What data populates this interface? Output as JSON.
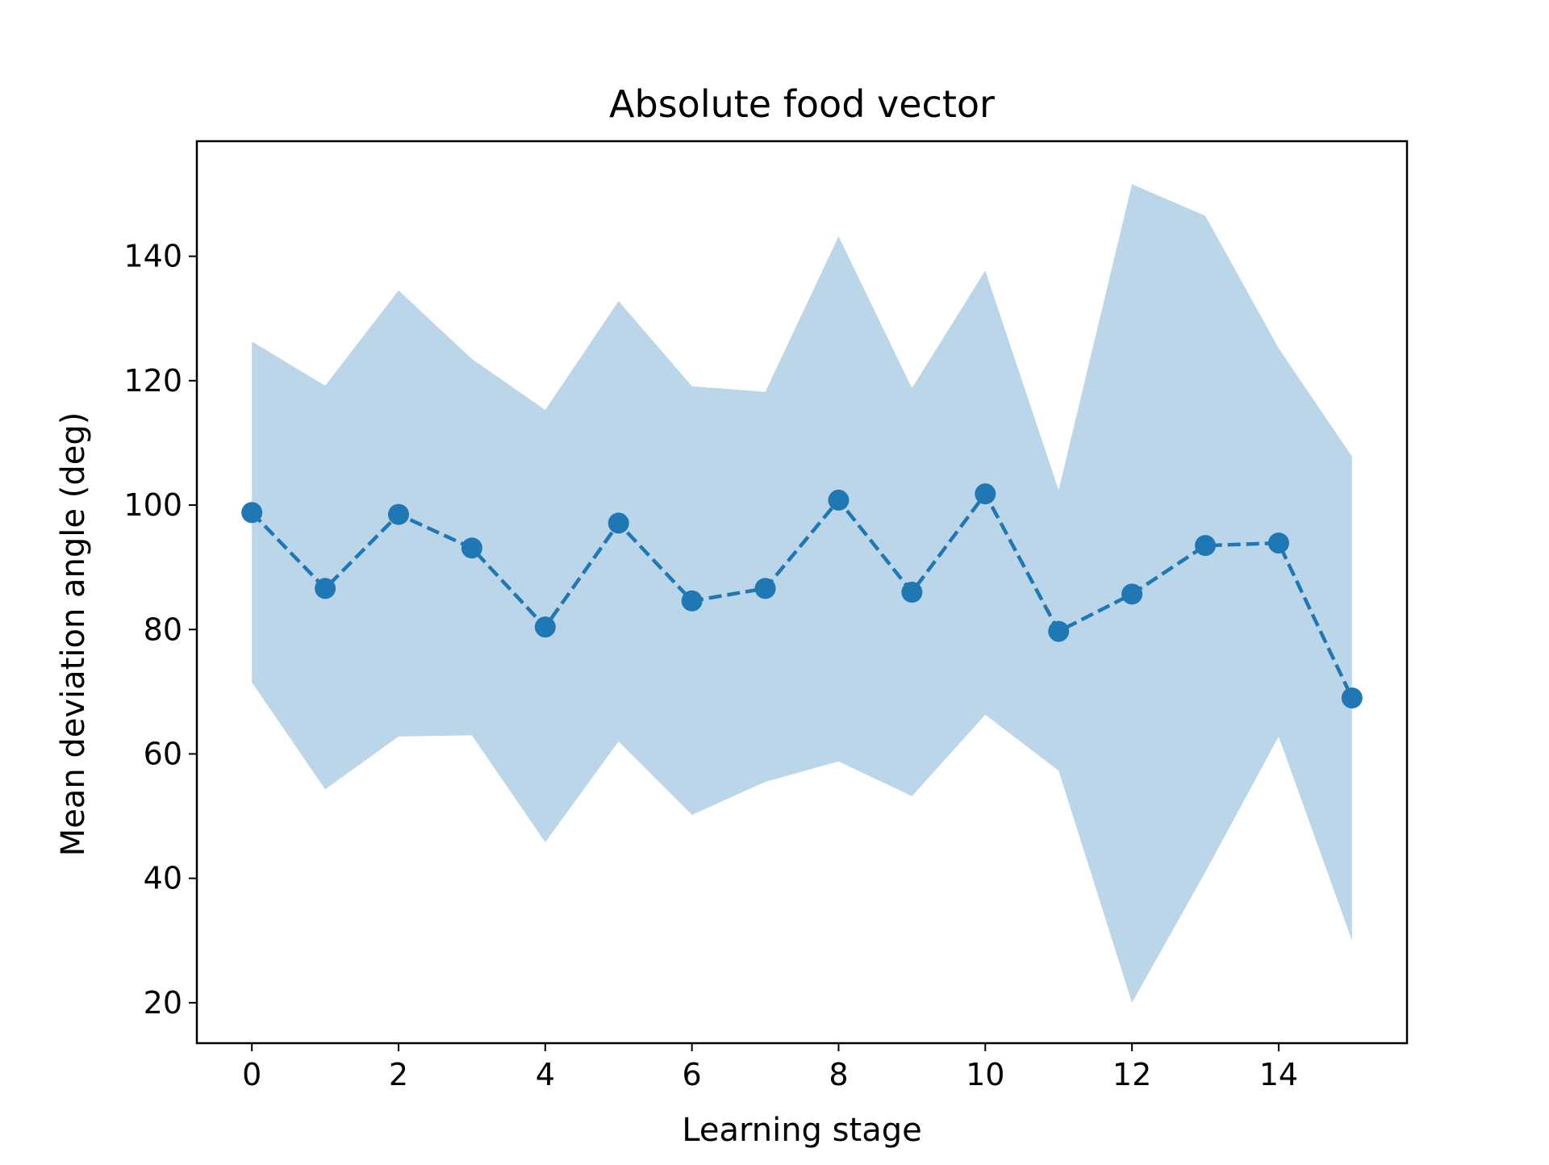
{
  "chart_data": {
    "type": "line",
    "title": "Absolute food vector",
    "xlabel": "Learning stage",
    "ylabel": "Mean deviation angle (deg)",
    "xlim": [
      -0.75,
      15.75
    ],
    "ylim": [
      13.5,
      158.5
    ],
    "xticks": [
      0,
      2,
      4,
      6,
      8,
      10,
      12,
      14
    ],
    "yticks": [
      20,
      40,
      60,
      80,
      100,
      120,
      140
    ],
    "grid": false,
    "series": [
      {
        "x": [
          0,
          1,
          2,
          3,
          4,
          5,
          6,
          7,
          8,
          9,
          10,
          11,
          12,
          13,
          14,
          15
        ],
        "values": [
          98.8,
          86.6,
          98.5,
          93.1,
          80.4,
          97.1,
          84.6,
          86.6,
          100.8,
          86.0,
          101.8,
          79.7,
          85.7,
          93.5,
          93.9,
          69.0
        ],
        "lower": [
          71.5,
          54.3,
          62.8,
          63.0,
          45.8,
          62.0,
          50.2,
          55.5,
          58.8,
          53.2,
          66.3,
          57.3,
          20.0,
          41.0,
          62.8,
          30.0
        ],
        "upper": [
          126.3,
          119.2,
          134.5,
          123.5,
          115.3,
          132.8,
          119.1,
          118.2,
          143.2,
          118.8,
          137.7,
          102.4,
          151.6,
          146.5,
          125.2,
          107.8
        ],
        "line_style": "dashed",
        "marker": "circle"
      }
    ],
    "colors": {
      "line": "#1f77b4",
      "band": "#1f77b4",
      "band_opacity": 0.3
    }
  }
}
